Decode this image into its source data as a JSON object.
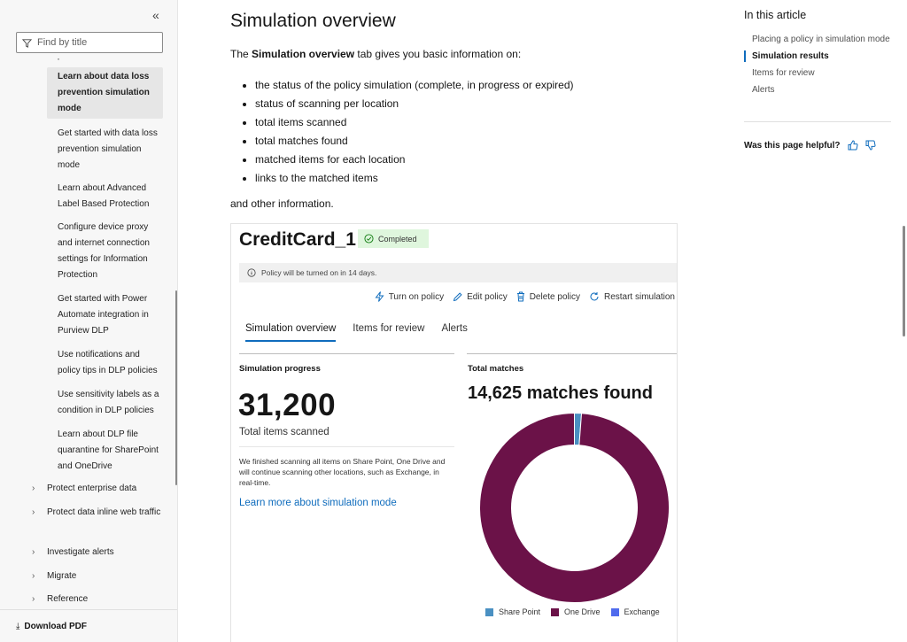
{
  "sidebar": {
    "collapse_glyph": "«",
    "filter_placeholder": "Find by title",
    "items": [
      {
        "label": "Learn about data loss prevention simulation mode",
        "active": true
      },
      {
        "label": "Get started with data loss prevention simulation mode"
      },
      {
        "label": "Learn about Advanced Label Based Protection"
      },
      {
        "label": "Configure device proxy and internet connection settings for Information Protection"
      },
      {
        "label": "Get started with Power Automate integration in Purview DLP"
      },
      {
        "label": "Use notifications and policy tips in DLP policies"
      },
      {
        "label": "Use sensitivity labels as a condition in DLP policies"
      },
      {
        "label": "Learn about DLP file quarantine for SharePoint and OneDrive"
      }
    ],
    "groups": [
      {
        "label": "Protect enterprise data"
      },
      {
        "label": "Protect data inline web traffic"
      },
      {
        "label": "Investigate alerts"
      },
      {
        "label": "Migrate"
      },
      {
        "label": "Reference"
      }
    ],
    "download_label": "Download PDF"
  },
  "article": {
    "title": "Simulation overview",
    "intro_pre": "The ",
    "intro_bold": "Simulation overview",
    "intro_post": " tab gives you basic information on:",
    "bullets": [
      "the status of the policy simulation (complete, in progress or expired)",
      "status of scanning per location",
      "total items scanned",
      "total matches found",
      "matched items for each location",
      "links to the matched items"
    ],
    "outro": "and other information."
  },
  "figure": {
    "policy_name": "CreditCard_1",
    "status": "Completed",
    "notice": "Policy will be turned on in 14 days.",
    "commands": [
      "Turn on policy",
      "Edit policy",
      "Delete policy",
      "Restart simulation"
    ],
    "tabs": [
      "Simulation overview",
      "Items for review",
      "Alerts"
    ],
    "progress_label": "Simulation progress",
    "items_scanned": "31,200",
    "items_scanned_caption": "Total items scanned",
    "progress_description": "We finished scanning all items on Share Point, One Drive and will continue scanning other locations, such as Exchange, in real-time.",
    "learn_more": "Learn more about simulation mode",
    "total_matches_label": "Total matches",
    "matches_headline": "14,625 matches found",
    "donut": {
      "segments": [
        {
          "name": "Share Point",
          "fraction": 0.012,
          "color": "#4a90c2"
        },
        {
          "name": "One Drive",
          "fraction": 0.988,
          "color": "#6b1248"
        },
        {
          "name": "Exchange",
          "fraction": 0.0,
          "color": "#4f6bed"
        }
      ]
    }
  },
  "rail": {
    "title": "In this article",
    "links": [
      {
        "label": "Placing a policy in simulation mode"
      },
      {
        "label": "Simulation results",
        "active": true
      },
      {
        "label": "Items for review"
      },
      {
        "label": "Alerts"
      }
    ],
    "helpful_label": "Was this page helpful?"
  },
  "colors": {
    "accent": "#0f6cbd",
    "onedrive": "#6b1248",
    "sharepoint": "#4a90c2",
    "exchange": "#4f6bed",
    "completed_badge_bg": "#dff6dd"
  }
}
